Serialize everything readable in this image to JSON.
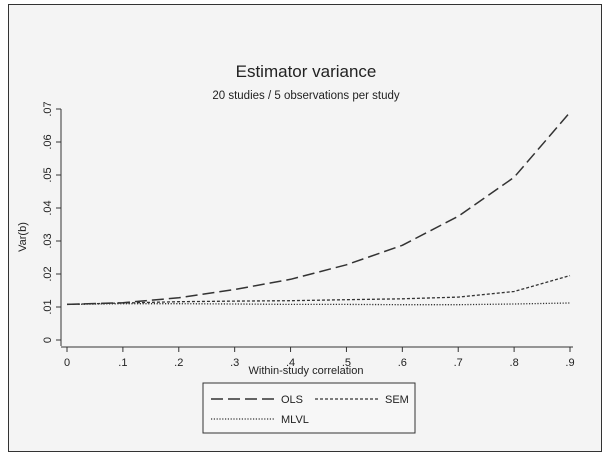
{
  "chart_data": {
    "type": "line",
    "title": "Estimator variance",
    "subtitle": "20 studies / 5 observations per study",
    "xlabel": "Within-study correlation",
    "ylabel": "Var(b)",
    "xlim": [
      0,
      0.9
    ],
    "ylim": [
      0,
      0.07
    ],
    "x": [
      0,
      0.1,
      0.2,
      0.3,
      0.4,
      0.5,
      0.6,
      0.7,
      0.8,
      0.9
    ],
    "x_ticks": [
      "0",
      ".1",
      ".2",
      ".3",
      ".4",
      ".5",
      ".6",
      ".7",
      ".8",
      ".9"
    ],
    "y_ticks": [
      "0",
      ".01",
      ".02",
      ".03",
      ".04",
      ".05",
      ".06",
      ".07"
    ],
    "y_tick_values": [
      0,
      0.01,
      0.02,
      0.03,
      0.04,
      0.05,
      0.06,
      0.07
    ],
    "grid": false,
    "legend_position": "bottom",
    "series": [
      {
        "name": "OLS",
        "dash": "long-dash",
        "values": [
          0.0108,
          0.0113,
          0.0128,
          0.0153,
          0.0184,
          0.0228,
          0.0287,
          0.0375,
          0.0493,
          0.069
        ]
      },
      {
        "name": "SEM",
        "dash": "short-dash",
        "values": [
          0.0108,
          0.0112,
          0.0116,
          0.0118,
          0.0119,
          0.0122,
          0.0125,
          0.013,
          0.0147,
          0.0195
        ]
      },
      {
        "name": "MLVL",
        "dash": "dot",
        "values": [
          0.0108,
          0.011,
          0.011,
          0.0109,
          0.0108,
          0.0108,
          0.0107,
          0.0107,
          0.0109,
          0.0112
        ]
      }
    ],
    "colors": {
      "line": "#333333",
      "frame": "#333333",
      "background": "#f4f4f4"
    }
  }
}
